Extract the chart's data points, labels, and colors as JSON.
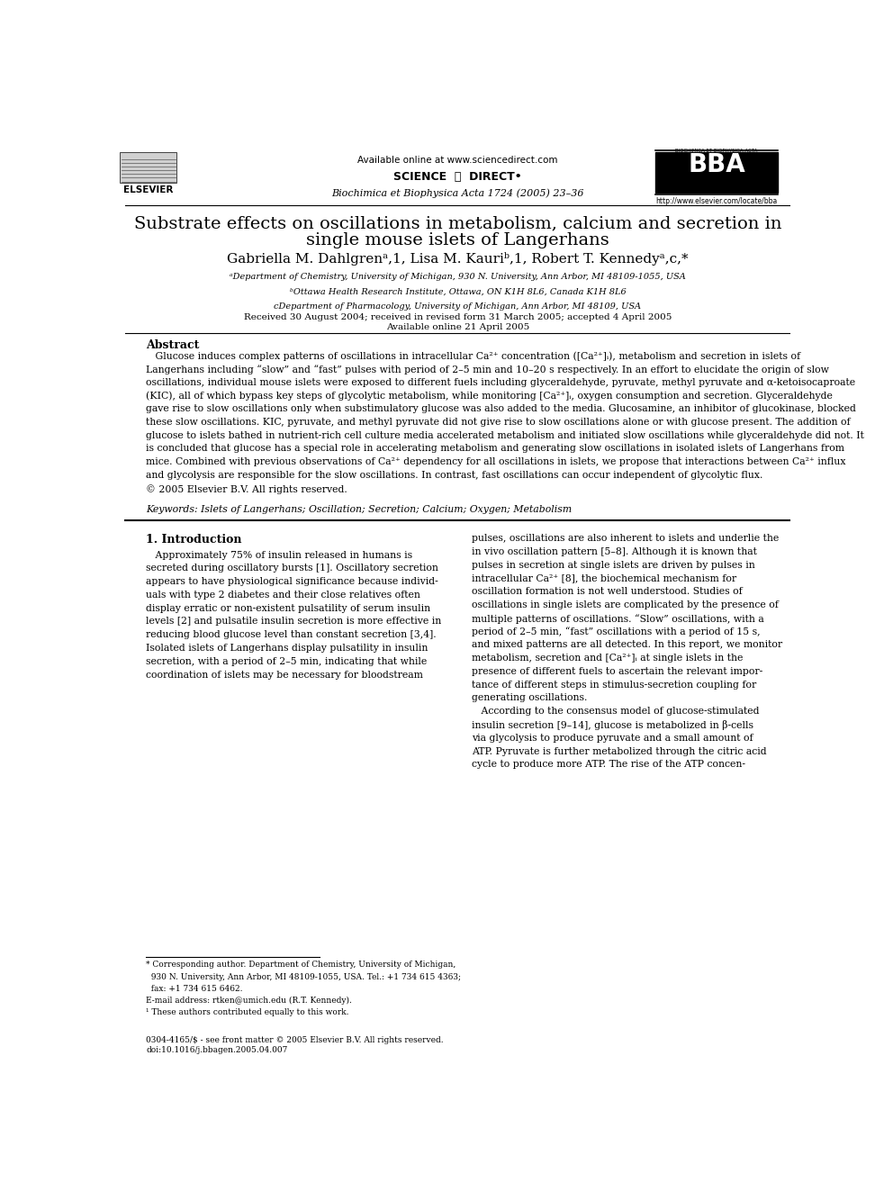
{
  "page_width": 9.92,
  "page_height": 13.23,
  "bg_color": "#ffffff",
  "header": {
    "available_online": "Available online at www.sciencedirect.com",
    "journal_name": "Biochimica et Biophysica Acta 1724 (2005) 23–36",
    "journal_url": "http://www.elsevier.com/locate/bba"
  },
  "title_line1": "Substrate effects on oscillations in metabolism, calcium and secretion in",
  "title_line2": "single mouse islets of Langerhans",
  "authors_line": "Gabriella M. Dahlgrenᵃ,1, Lisa M. Kauriᵇ,1, Robert T. Kennedyᵃ,c,*",
  "affiliations": [
    "ᵃDepartment of Chemistry, University of Michigan, 930 N. University, Ann Arbor, MI 48109-1055, USA",
    "ᵇOttawa Health Research Institute, Ottawa, ON K1H 8L6, Canada K1H 8L6",
    "cDepartment of Pharmacology, University of Michigan, Ann Arbor, MI 48109, USA"
  ],
  "received_line1": "Received 30 August 2004; received in revised form 31 March 2005; accepted 4 April 2005",
  "received_line2": "Available online 21 April 2005",
  "abstract_title": "Abstract",
  "keywords": "Keywords: Islets of Langerhans; Oscillation; Secretion; Calcium; Oxygen; Metabolism",
  "intro_title": "1. Introduction",
  "footer_line1": "0304-4165/$ - see front matter © 2005 Elsevier B.V. All rights reserved.",
  "footer_line2": "doi:10.1016/j.bbagen.2005.04.007"
}
